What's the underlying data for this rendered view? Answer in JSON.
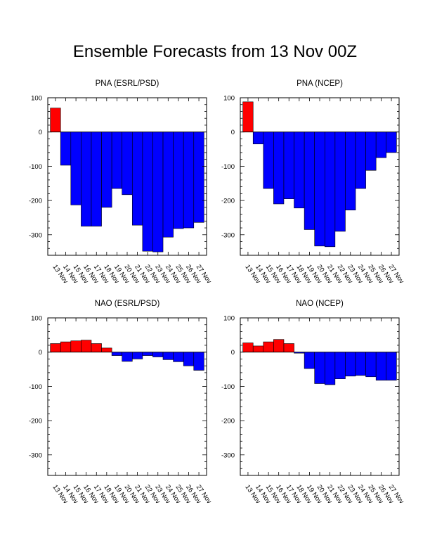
{
  "figure": {
    "title": "Ensemble Forecasts from 13 Nov 00Z"
  },
  "colors": {
    "positive": "#ff0000",
    "negative": "#0000ff",
    "frame": "#000000"
  },
  "chart_data": [
    {
      "type": "bar",
      "title": "PNA (ESRL/PSD)",
      "categories": [
        "13 Nov",
        "14 Nov",
        "15 Nov",
        "16 Nov",
        "17 Nov",
        "18 Nov",
        "19 Nov",
        "20 Nov",
        "21 Nov",
        "22 Nov",
        "23 Nov",
        "24 Nov",
        "25 Nov",
        "26 Nov",
        "27 Nov"
      ],
      "values": [
        70,
        -97,
        -213,
        -275,
        -275,
        -220,
        -165,
        -183,
        -272,
        -348,
        -350,
        -307,
        -282,
        -280,
        -264
      ],
      "ylim": [
        -360,
        100
      ],
      "yticks": [
        "100",
        "0",
        "-100",
        "-200",
        "-300"
      ],
      "grid": false,
      "legend": "none"
    },
    {
      "type": "bar",
      "title": "PNA (NCEP)",
      "categories": [
        "13 Nov",
        "14 Nov",
        "15 Nov",
        "16 Nov",
        "17 Nov",
        "18 Nov",
        "19 Nov",
        "20 Nov",
        "21 Nov",
        "22 Nov",
        "23 Nov",
        "24 Nov",
        "25 Nov",
        "26 Nov",
        "27 Nov"
      ],
      "values": [
        88,
        -35,
        -165,
        -210,
        -195,
        -222,
        -285,
        -333,
        -335,
        -290,
        -228,
        -165,
        -112,
        -75,
        -60
      ],
      "ylim": [
        -360,
        100
      ],
      "yticks": [
        "100",
        "0",
        "-100",
        "-200",
        "-300"
      ],
      "grid": false,
      "legend": "none"
    },
    {
      "type": "bar",
      "title": "NAO (ESRL/PSD)",
      "categories": [
        "13 Nov",
        "14 Nov",
        "15 Nov",
        "16 Nov",
        "17 Nov",
        "18 Nov",
        "19 Nov",
        "20 Nov",
        "21 Nov",
        "22 Nov",
        "23 Nov",
        "24 Nov",
        "25 Nov",
        "26 Nov",
        "27 Nov"
      ],
      "values": [
        25,
        30,
        33,
        35,
        25,
        12,
        -10,
        -27,
        -20,
        -10,
        -14,
        -22,
        -28,
        -40,
        -53
      ],
      "ylim": [
        -360,
        100
      ],
      "yticks": [
        "100",
        "0",
        "-100",
        "-200",
        "-300"
      ],
      "grid": false,
      "legend": "none"
    },
    {
      "type": "bar",
      "title": "NAO (NCEP)",
      "categories": [
        "13 Nov",
        "14 Nov",
        "15 Nov",
        "16 Nov",
        "17 Nov",
        "18 Nov",
        "19 Nov",
        "20 Nov",
        "21 Nov",
        "22 Nov",
        "23 Nov",
        "24 Nov",
        "25 Nov",
        "26 Nov",
        "27 Nov"
      ],
      "values": [
        27,
        18,
        30,
        37,
        25,
        -3,
        -48,
        -92,
        -95,
        -78,
        -70,
        -68,
        -72,
        -82,
        -82
      ],
      "ylim": [
        -360,
        100
      ],
      "yticks": [
        "100",
        "0",
        "-100",
        "-200",
        "-300"
      ],
      "grid": false,
      "legend": "none"
    }
  ]
}
